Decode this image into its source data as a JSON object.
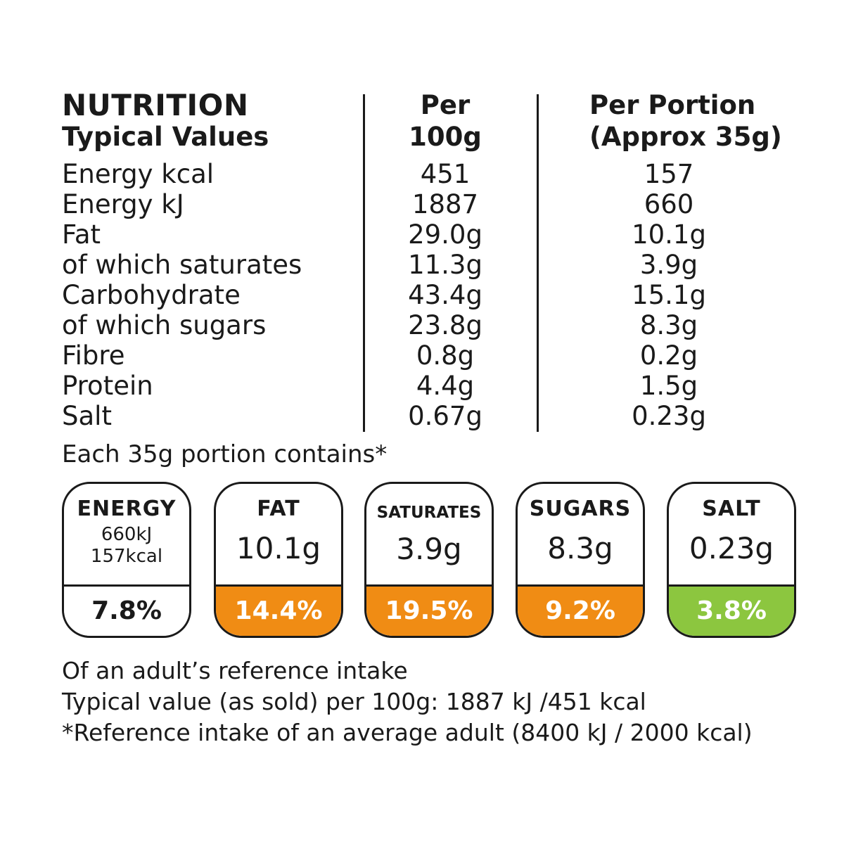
{
  "table": {
    "header": {
      "title": "NUTRITION",
      "subtitle": "Typical Values",
      "per100_line1": "Per",
      "per100_line2": "100g",
      "portion_line1": "Per Portion",
      "portion_line2": "(Approx 35g)"
    },
    "rows": [
      {
        "label": "Energy kcal",
        "per100": "451",
        "portion": "157"
      },
      {
        "label": "Energy kJ",
        "per100": "1887",
        "portion": "660"
      },
      {
        "label": "Fat",
        "per100": "29.0g",
        "portion": "10.1g"
      },
      {
        "label": "of which saturates",
        "per100": "11.3g",
        "portion": "3.9g"
      },
      {
        "label": "Carbohydrate",
        "per100": "43.4g",
        "portion": "15.1g"
      },
      {
        "label": "of which sugars",
        "per100": "23.8g",
        "portion": "8.3g"
      },
      {
        "label": "Fibre",
        "per100": "0.8g",
        "portion": "0.2g"
      },
      {
        "label": "Protein",
        "per100": "4.4g",
        "portion": "1.5g"
      },
      {
        "label": "Salt",
        "per100": "0.67g",
        "portion": "0.23g"
      }
    ]
  },
  "portion_text": "Each 35g portion contains*",
  "badges": {
    "energy": {
      "name": "ENERGY",
      "kj": "660kJ",
      "kcal": "157kcal",
      "percent": "7.8%",
      "color": "#ffffff"
    },
    "fat": {
      "name": "FAT",
      "value": "10.1g",
      "percent": "14.4%",
      "color": "#f08c14"
    },
    "saturates": {
      "name": "SATURATES",
      "value": "3.9g",
      "percent": "19.5%",
      "color": "#f08c14"
    },
    "sugars": {
      "name": "SUGARS",
      "value": "8.3g",
      "percent": "9.2%",
      "color": "#f08c14"
    },
    "salt": {
      "name": "SALT",
      "value": "0.23g",
      "percent": "3.8%",
      "color": "#8cc63f"
    }
  },
  "footer": {
    "line1": "Of an adult’s reference intake",
    "line2": "Typical value (as sold) per 100g: 1887 kJ /451 kcal",
    "line3": "*Reference intake of an average adult (8400 kJ / 2000 kcal)"
  }
}
